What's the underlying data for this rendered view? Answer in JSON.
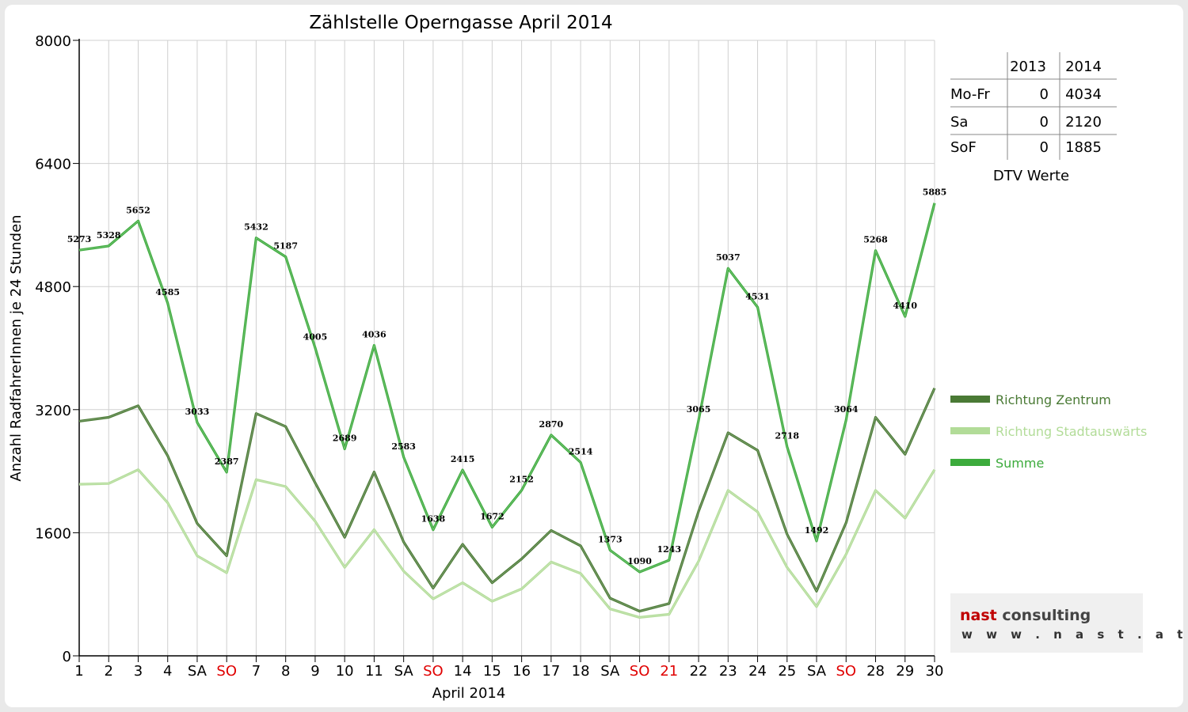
{
  "chart_data": {
    "type": "line",
    "title": "Zählstelle Operngasse April 2014",
    "xlabel": "April 2014",
    "ylabel": "Anzahl RadfahrerInnen je 24 Stunden",
    "ylim": [
      0,
      8000
    ],
    "yticks": [
      "0",
      "1600",
      "3200",
      "4800",
      "6400",
      "8000"
    ],
    "grid": true,
    "legend_position": "right",
    "categories": [
      "1",
      "2",
      "3",
      "4",
      "SA",
      "SO",
      "7",
      "8",
      "9",
      "10",
      "11",
      "SA",
      "SO",
      "14",
      "15",
      "16",
      "17",
      "18",
      "SA",
      "SO",
      "21",
      "22",
      "23",
      "24",
      "25",
      "SA",
      "SO",
      "28",
      "29",
      "30"
    ],
    "red_categories": [
      5,
      12,
      19,
      20,
      26
    ],
    "series": [
      {
        "name": "Richtung Zentrum",
        "color": "#4a7a35",
        "values": [
          3050,
          3100,
          3250,
          2600,
          1720,
          1300,
          3150,
          2980,
          2250,
          1540,
          2390,
          1480,
          880,
          1450,
          950,
          1260,
          1630,
          1430,
          750,
          580,
          680,
          1880,
          2900,
          2670,
          1580,
          840,
          1730,
          3100,
          2620,
          3480
        ]
      },
      {
        "name": "Richtung Stadtauswärts",
        "color": "#b2dc98",
        "values": [
          2230,
          2240,
          2420,
          1990,
          1300,
          1080,
          2290,
          2200,
          1750,
          1150,
          1640,
          1100,
          740,
          950,
          710,
          870,
          1220,
          1070,
          610,
          500,
          540,
          1230,
          2150,
          1870,
          1150,
          640,
          1320,
          2150,
          1790,
          2420
        ]
      },
      {
        "name": "Summe",
        "color": "#3cab3c",
        "values": [
          5273,
          5328,
          5652,
          4585,
          3033,
          2387,
          5432,
          5187,
          4005,
          2689,
          4036,
          2583,
          1638,
          2415,
          1672,
          2152,
          2870,
          2514,
          1373,
          1090,
          1243,
          3065,
          5037,
          4531,
          2718,
          1492,
          3064,
          5268,
          4410,
          5885
        ]
      }
    ],
    "data_labels": [
      "5273",
      "5328",
      "5652",
      "4585",
      "3033",
      "2387",
      "5432",
      "5187",
      "4005",
      "2689",
      "4036",
      "2583",
      "1638",
      "2415",
      "1672",
      "2152",
      "2870",
      "2514",
      "1373",
      "1090",
      "1243",
      "3065",
      "5037",
      "4531",
      "2718",
      "1492",
      "3064",
      "5268",
      "4410",
      "5885"
    ]
  },
  "dtv_table": {
    "caption": "DTV Werte",
    "headers": [
      "",
      "2013",
      "2014"
    ],
    "rows": [
      {
        "label": "Mo-Fr",
        "y2013": "0",
        "y2014": "4034"
      },
      {
        "label": "Sa",
        "y2013": "0",
        "y2014": "2120"
      },
      {
        "label": "SoF",
        "y2013": "0",
        "y2014": "1885"
      }
    ]
  },
  "logo": {
    "brand_part1": "nast",
    "brand_part2": " consulting",
    "url": "w w w . n a s t . a t"
  },
  "colors": {
    "zentrum": "#4a7a35",
    "stadtauswaerts": "#b2dc98",
    "summe": "#3cab3c",
    "holiday_red": "#e00000"
  }
}
